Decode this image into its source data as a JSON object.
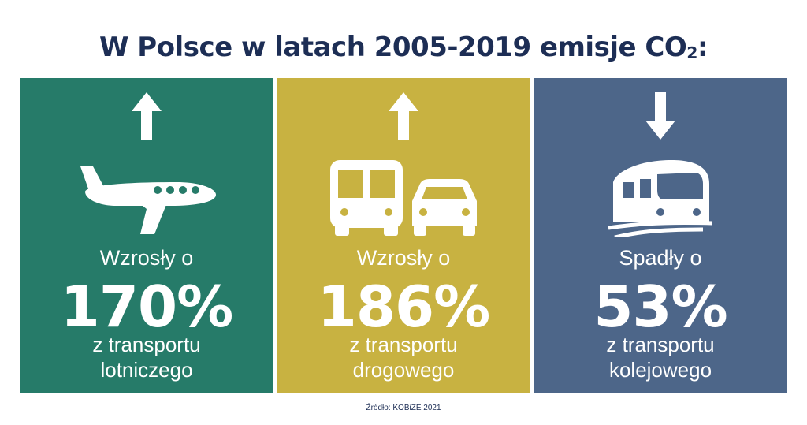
{
  "title_main": "W Polsce w latach 2005-2019 emisje CO",
  "title_sub": "2",
  "title_end": ":",
  "colors": {
    "title": "#1d2e55",
    "green": "#267b69",
    "yellow": "#c8b241",
    "blue": "#4d6689"
  },
  "panels": [
    {
      "trend_label": "Wzrosły o",
      "value": "170%",
      "desc_line1": "z transportu",
      "desc_line2": "lotniczego",
      "direction": "up",
      "icon": "airplane-icon"
    },
    {
      "trend_label": "Wzrosły o",
      "value": "186%",
      "desc_line1": "z transportu",
      "desc_line2": "drogowego",
      "direction": "up",
      "icon": "bus-car-icon"
    },
    {
      "trend_label": "Spadły o",
      "value": "53%",
      "desc_line1": "z transportu",
      "desc_line2": "kolejowego",
      "direction": "down",
      "icon": "train-icon"
    }
  ],
  "source": "Źródło: KOBiZE 2021"
}
